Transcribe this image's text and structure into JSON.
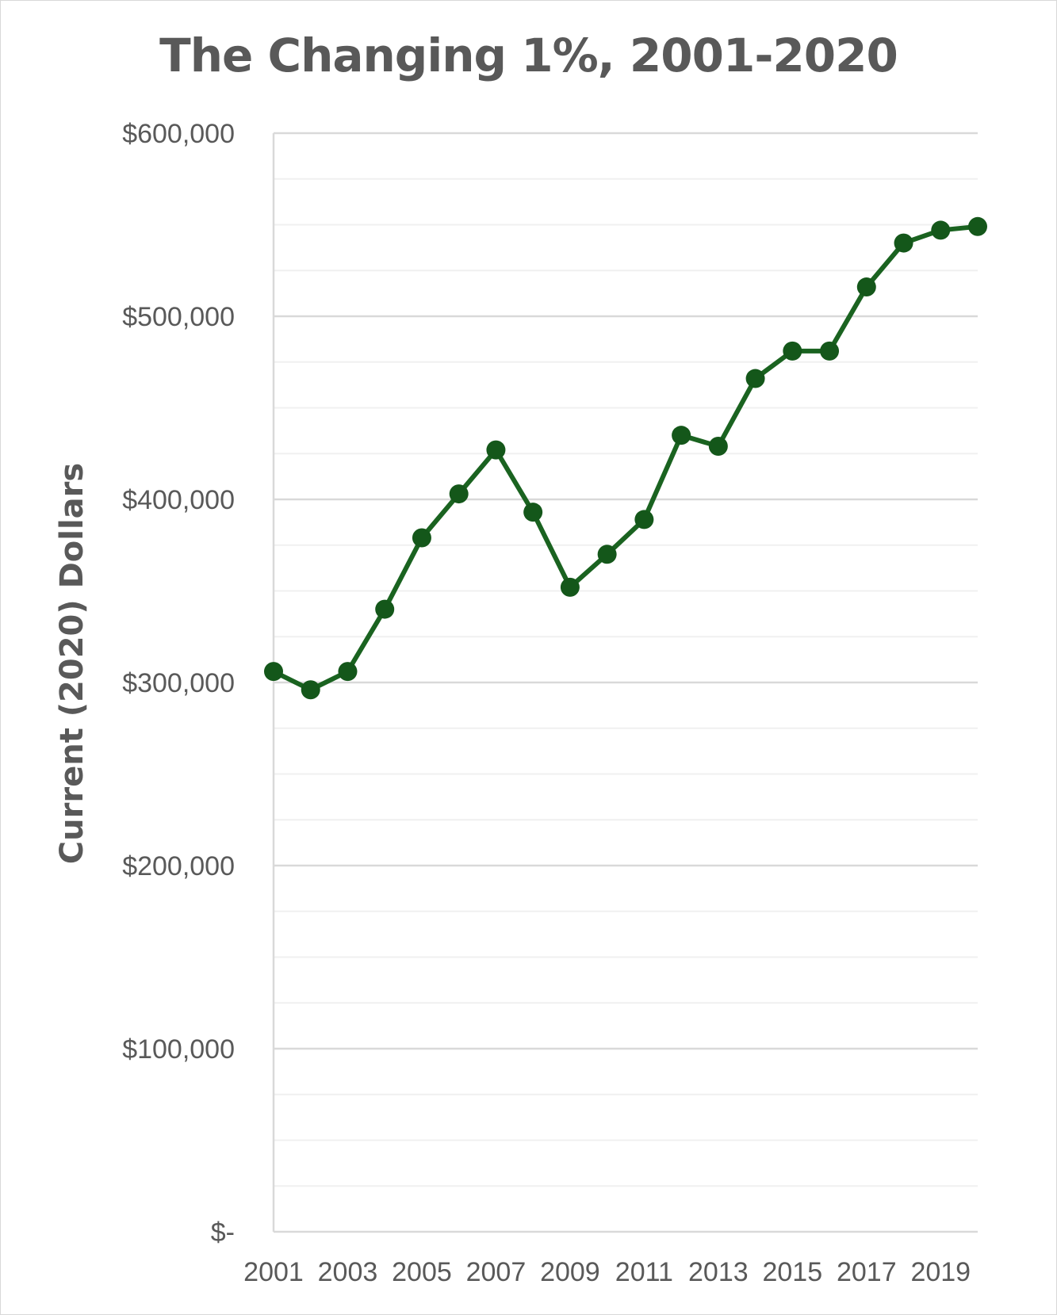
{
  "chart_data": {
    "type": "line",
    "title": "The Changing 1%, 2001-2020",
    "xlabel": "",
    "ylabel": "Current (2020) Dollars",
    "x": [
      2001,
      2002,
      2003,
      2004,
      2005,
      2006,
      2007,
      2008,
      2009,
      2010,
      2011,
      2012,
      2013,
      2014,
      2015,
      2016,
      2017,
      2018,
      2019,
      2020
    ],
    "x_tick_labels": [
      "2001",
      "2003",
      "2005",
      "2007",
      "2009",
      "2011",
      "2013",
      "2015",
      "2017",
      "2019"
    ],
    "y_tick_labels": [
      "$-",
      "$100,000",
      "$200,000",
      "$300,000",
      "$400,000",
      "$500,000",
      "$600,000"
    ],
    "series": [
      {
        "values": [
          306000,
          296000,
          306000,
          340000,
          379000,
          403000,
          427000,
          393000,
          352000,
          370000,
          389000,
          435000,
          429000,
          466000,
          481000,
          481000,
          516000,
          540000,
          547000,
          549000
        ]
      }
    ],
    "ylim": [
      0,
      600000
    ],
    "y_major_step": 100000,
    "y_minor_step": 25000,
    "grid": true,
    "legend": "none",
    "line_color": "#1a6320",
    "marker_color": "#14571a"
  }
}
